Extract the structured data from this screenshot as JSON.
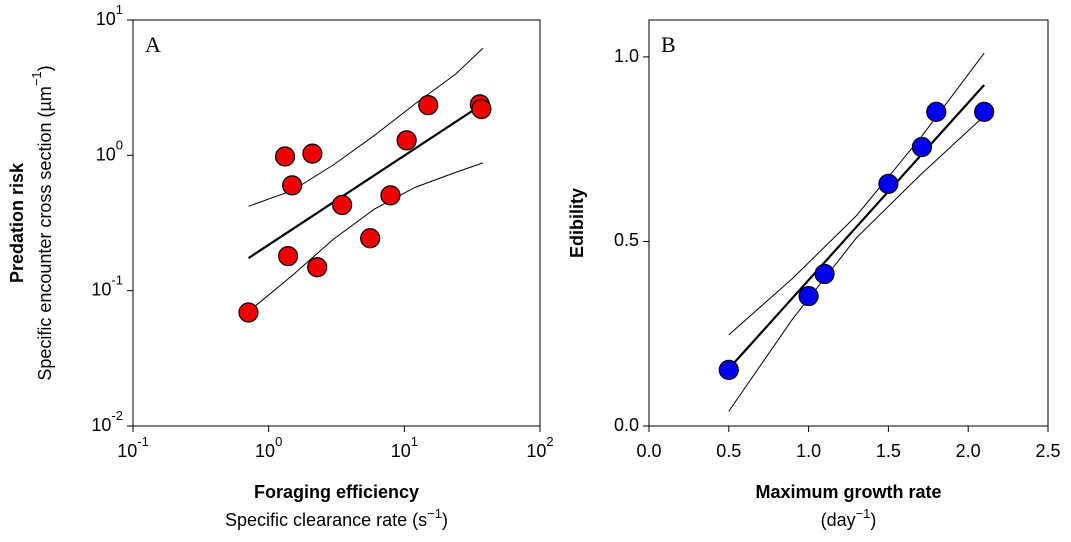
{
  "chart_data": [
    {
      "type": "scatter",
      "panel": "A",
      "xscale": "log",
      "yscale": "log",
      "color": "#ee0000",
      "xlabel": "Foraging efficiency",
      "xlabel2": {
        "text": "Specific clearance rate (s",
        "sup": "−1",
        "end": ")"
      },
      "ylabel": "Predation risk",
      "ylabel2": {
        "text": "Specific encounter cross section (µm",
        "sup": "−1",
        "end": ")"
      },
      "xlim": [
        0.1,
        100
      ],
      "ylim": [
        0.01,
        10
      ],
      "xticks": [
        {
          "value": 0.1,
          "label": "10",
          "exponent": "-1"
        },
        {
          "value": 1,
          "label": "10",
          "exponent": "0"
        },
        {
          "value": 10,
          "label": "10",
          "exponent": "1"
        },
        {
          "value": 100,
          "label": "10",
          "exponent": "2"
        }
      ],
      "yticks": [
        {
          "value": 0.01,
          "label": "10",
          "exponent": "-2"
        },
        {
          "value": 0.1,
          "label": "10",
          "exponent": "-1"
        },
        {
          "value": 1,
          "label": "10",
          "exponent": "0"
        },
        {
          "value": 10,
          "label": "10",
          "exponent": "1"
        }
      ],
      "x": [
        0.71,
        1.32,
        2.1,
        1.49,
        1.39,
        2.28,
        3.48,
        5.6,
        7.9,
        10.4,
        15,
        36,
        37
      ],
      "values": [
        0.069,
        0.98,
        1.03,
        0.6,
        0.18,
        0.149,
        0.43,
        0.244,
        0.506,
        1.29,
        2.35,
        2.38,
        2.2
      ],
      "fit": {
        "x": [
          0.71,
          38
        ],
        "values": [
          0.174,
          2.4
        ]
      },
      "ci_upper": {
        "x": [
          0.71,
          1.5,
          3,
          6,
          12,
          24,
          38
        ],
        "values": [
          0.42,
          0.55,
          0.85,
          1.4,
          2.4,
          4.0,
          6.2
        ]
      },
      "ci_lower": {
        "x": [
          0.71,
          1.5,
          3,
          6,
          12,
          24,
          38
        ],
        "values": [
          0.07,
          0.13,
          0.24,
          0.4,
          0.58,
          0.75,
          0.88
        ]
      }
    },
    {
      "type": "scatter",
      "panel": "B",
      "xscale": "linear",
      "yscale": "linear",
      "color": "#0000ee",
      "xlabel": "Maximum growth rate",
      "xlabel2": {
        "text": "(day",
        "sup": "−1",
        "end": ")"
      },
      "ylabel": "Edibility",
      "xlim": [
        0,
        2.5
      ],
      "ylim": [
        0,
        1.1
      ],
      "xticks": [
        {
          "value": 0,
          "label": "0.0"
        },
        0.5,
        {
          "value": 1,
          "label": "1.0"
        },
        1.5,
        {
          "value": 2,
          "label": "2.0"
        },
        2.5
      ],
      "yticks": [
        {
          "value": 0,
          "label": "0.0"
        },
        0.5,
        {
          "value": 1,
          "label": "1.0"
        }
      ],
      "x": [
        0.5,
        1.0,
        1.1,
        1.5,
        1.71,
        1.8,
        2.1
      ],
      "values": [
        0.152,
        0.352,
        0.412,
        0.656,
        0.756,
        0.851,
        0.851
      ],
      "fit": {
        "x": [
          0.5,
          2.1
        ],
        "values": [
          0.155,
          0.924
        ]
      },
      "ci_upper": {
        "x": [
          0.5,
          0.9,
          1.3,
          1.7,
          2.1
        ],
        "values": [
          0.247,
          0.4,
          0.57,
          0.78,
          1.01
        ]
      },
      "ci_lower": {
        "x": [
          0.5,
          0.9,
          1.3,
          1.7,
          2.1
        ],
        "values": [
          0.04,
          0.29,
          0.51,
          0.68,
          0.84
        ]
      }
    }
  ]
}
